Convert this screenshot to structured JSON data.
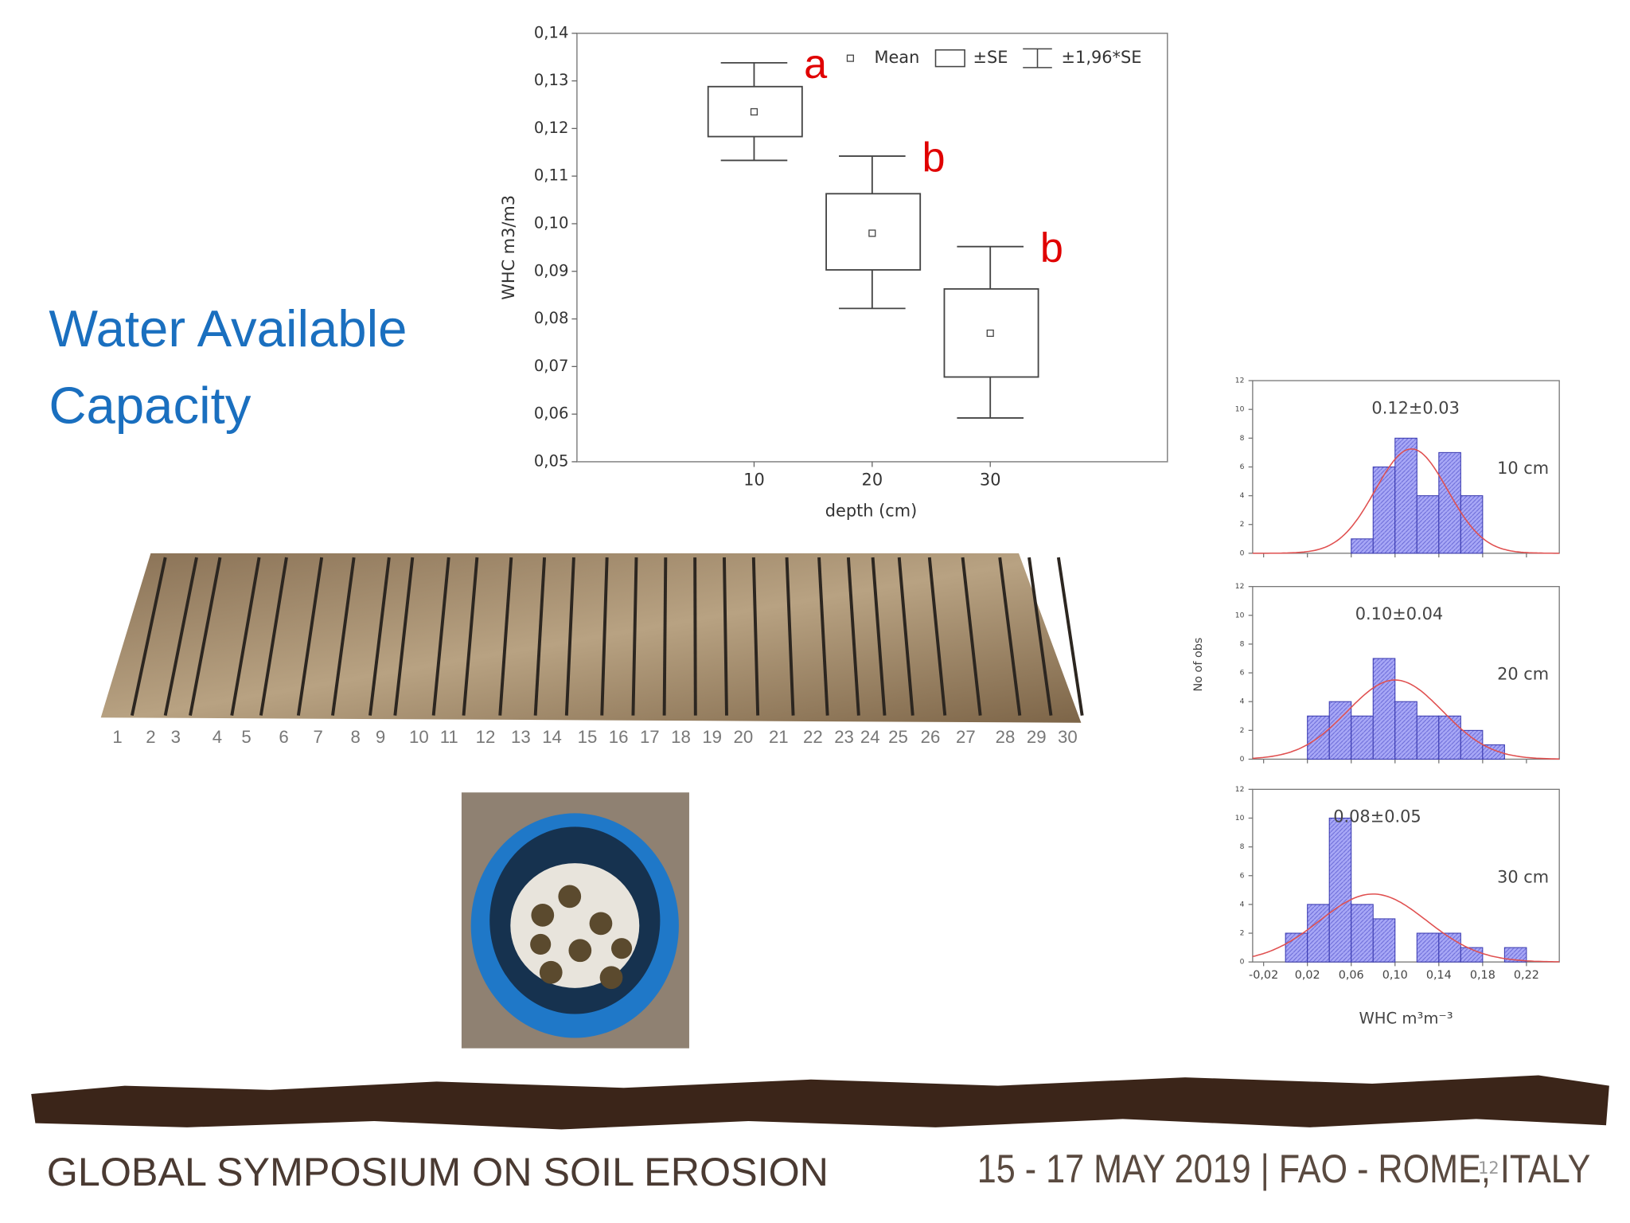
{
  "title": "Water Available Capacity",
  "chart_data": [
    {
      "type": "box",
      "ylabel": "WHC m3/m3",
      "xlabel": "depth (cm)",
      "x": [
        10,
        20,
        30
      ],
      "series": [
        {
          "name": "Mean",
          "values": [
            0.1235,
            0.098,
            0.077
          ]
        },
        {
          "name": "±SE",
          "low": [
            0.1183,
            0.0903,
            0.0678
          ],
          "high": [
            0.1288,
            0.1063,
            0.0863
          ]
        },
        {
          "name": "±1,96*SE",
          "low": [
            0.1133,
            0.0822,
            0.0592
          ],
          "high": [
            0.1338,
            0.1142,
            0.0952
          ]
        }
      ],
      "annotations": [
        "a",
        "b",
        "b"
      ],
      "annotation_color": "#e00000",
      "color": "#444444",
      "xlim": [
        -5,
        45
      ],
      "xticks": [
        10,
        20,
        30
      ],
      "ylim": [
        0.05,
        0.14
      ],
      "yticks": [
        {
          "value": 0.05,
          "label": "0,05"
        },
        {
          "value": 0.06,
          "label": "0,06"
        },
        {
          "value": 0.07,
          "label": "0,07"
        },
        {
          "value": 0.08,
          "label": "0,08"
        },
        {
          "value": 0.09,
          "label": "0,09"
        },
        {
          "value": 0.1,
          "label": "0,10"
        },
        {
          "value": 0.11,
          "label": "0,11"
        },
        {
          "value": 0.12,
          "label": "0,12"
        },
        {
          "value": 0.13,
          "label": "0,13"
        },
        {
          "value": 0.14,
          "label": "0,14"
        }
      ]
    },
    {
      "type": "histogram",
      "label": "10 cm",
      "annotation": "0.12±0.03",
      "bins": [
        0,
        0.02,
        0.04,
        0.06,
        0.08,
        0.1,
        0.12,
        0.14,
        0.16,
        0.18,
        0.2,
        0.22
      ],
      "values": [
        0,
        0,
        0,
        1,
        6,
        8,
        4,
        7,
        4,
        0,
        0
      ],
      "color": "#9a9af2",
      "curve_color": "#e05050",
      "curve": {
        "mean": 0.115,
        "sd": 0.033
      },
      "xlim": [
        -0.03,
        0.25
      ],
      "xticks": [
        -0.02,
        0.02,
        0.06,
        0.1,
        0.14,
        0.18,
        0.22
      ],
      "xtick_labels": false,
      "ylim": [
        0,
        12
      ],
      "yticks": [
        0,
        2,
        4,
        6,
        8,
        10,
        12
      ]
    },
    {
      "type": "histogram",
      "label": "20 cm",
      "annotation": "0.10±0.04",
      "ylabel": "No of obs",
      "bins": [
        0,
        0.02,
        0.04,
        0.06,
        0.08,
        0.1,
        0.12,
        0.14,
        0.16,
        0.18,
        0.2,
        0.22
      ],
      "values": [
        0,
        3,
        4,
        3,
        7,
        4,
        3,
        3,
        2,
        1,
        0
      ],
      "color": "#9a9af2",
      "curve_color": "#e05050",
      "curve": {
        "mean": 0.1,
        "sd": 0.0435
      },
      "xlim": [
        -0.03,
        0.25
      ],
      "xticks": [
        -0.02,
        0.02,
        0.06,
        0.1,
        0.14,
        0.18,
        0.22
      ],
      "xtick_labels": false,
      "ylim": [
        0,
        12
      ],
      "yticks": [
        0,
        2,
        4,
        6,
        8,
        10,
        12
      ]
    },
    {
      "type": "histogram",
      "label": "30 cm",
      "annotation": "0.08±0.05",
      "xlabel": "WHC  m³m⁻³",
      "bins": [
        0,
        0.02,
        0.04,
        0.06,
        0.08,
        0.1,
        0.12,
        0.14,
        0.16,
        0.18,
        0.2,
        0.22
      ],
      "values": [
        2,
        4,
        10,
        4,
        3,
        0,
        2,
        2,
        1,
        0,
        1
      ],
      "color": "#9a9af2",
      "curve_color": "#e05050",
      "curve": {
        "mean": 0.08,
        "sd": 0.049
      },
      "xlim": [
        -0.03,
        0.25
      ],
      "xticks": [
        {
          "value": -0.02,
          "label": "-0,02"
        },
        {
          "value": 0.02,
          "label": "0,02"
        },
        {
          "value": 0.06,
          "label": "0,06"
        },
        {
          "value": 0.1,
          "label": "0,10"
        },
        {
          "value": 0.14,
          "label": "0,14"
        },
        {
          "value": 0.18,
          "label": "0,18"
        },
        {
          "value": 0.22,
          "label": "0,22"
        }
      ],
      "xtick_labels": true,
      "ylim": [
        0,
        12
      ],
      "yticks": [
        0,
        2,
        4,
        6,
        8,
        10,
        12
      ]
    }
  ],
  "core_labels": [
    "1",
    "2",
    "3",
    "4",
    "5",
    "6",
    "7",
    "8",
    "9",
    "10",
    "11",
    "12",
    "13",
    "14",
    "15",
    "16",
    "17",
    "18",
    "19",
    "20",
    "21",
    "22",
    "23",
    "24",
    "25",
    "26",
    "27",
    "28",
    "29",
    "30"
  ],
  "footer": {
    "left": "GLOBAL SYMPOSIUM ON SOIL EROSION",
    "right": "15 - 17 MAY 2019 | FAO - ROME, ITALY",
    "page": "12"
  }
}
